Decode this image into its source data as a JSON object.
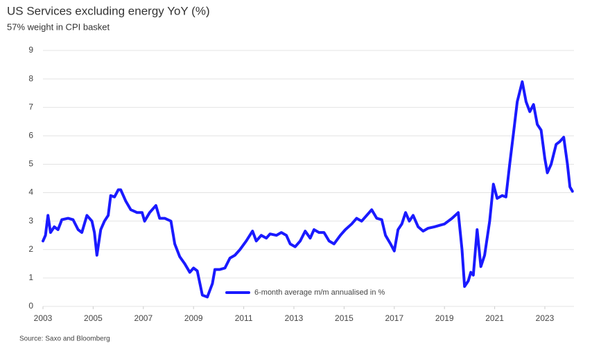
{
  "chart_data": {
    "type": "line",
    "title": "US Services excluding energy YoY (%)",
    "subtitle": "57% weight in CPI basket",
    "source": "Source: Saxo and Bloomberg",
    "legend": "lower center",
    "grid": true,
    "xlim": [
      2003,
      2024.16
    ],
    "xticks": [
      2003,
      2005,
      2007,
      2009,
      2011,
      2013,
      2015,
      2017,
      2019,
      2021,
      2023
    ],
    "ylim": [
      0,
      9
    ],
    "yticks": [
      0,
      1,
      2,
      3,
      4,
      5,
      6,
      7,
      8,
      9
    ],
    "x": [
      2003.0,
      2003.1,
      2003.2,
      2003.3,
      2003.45,
      2003.6,
      2003.75,
      2004.0,
      2004.2,
      2004.4,
      2004.55,
      2004.75,
      2004.95,
      2005.05,
      2005.15,
      2005.3,
      2005.45,
      2005.6,
      2005.7,
      2005.85,
      2006.0,
      2006.1,
      2006.3,
      2006.5,
      2006.75,
      2006.95,
      2007.05,
      2007.25,
      2007.5,
      2007.65,
      2007.85,
      2008.1,
      2008.25,
      2008.45,
      2008.65,
      2008.85,
      2009.0,
      2009.15,
      2009.35,
      2009.55,
      2009.75,
      2009.85,
      2010.05,
      2010.25,
      2010.45,
      2010.65,
      2010.85,
      2011.1,
      2011.35,
      2011.5,
      2011.7,
      2011.9,
      2012.05,
      2012.3,
      2012.5,
      2012.7,
      2012.85,
      2013.05,
      2013.25,
      2013.45,
      2013.65,
      2013.8,
      2014.0,
      2014.2,
      2014.4,
      2014.6,
      2014.85,
      2015.05,
      2015.3,
      2015.5,
      2015.7,
      2015.9,
      2016.1,
      2016.3,
      2016.5,
      2016.65,
      2016.85,
      2017.0,
      2017.15,
      2017.3,
      2017.45,
      2017.6,
      2017.75,
      2017.95,
      2018.15,
      2018.35,
      2018.6,
      2018.8,
      2019.0,
      2019.3,
      2019.55,
      2019.7,
      2019.8,
      2019.95,
      2020.05,
      2020.15,
      2020.3,
      2020.45,
      2020.6,
      2020.8,
      2020.95,
      2021.1,
      2021.3,
      2021.45,
      2021.6,
      2021.75,
      2021.9,
      2022.1,
      2022.25,
      2022.4,
      2022.55,
      2022.7,
      2022.85,
      2023.0,
      2023.1,
      2023.25,
      2023.45,
      2023.6,
      2023.75,
      2023.9,
      2024.0,
      2024.1
    ],
    "series": [
      {
        "name": "6-month average m/m annualised in %",
        "color": "#1a1aff",
        "values": [
          2.3,
          2.5,
          3.2,
          2.6,
          2.8,
          2.7,
          3.05,
          3.1,
          3.05,
          2.7,
          2.6,
          3.2,
          3.0,
          2.6,
          1.8,
          2.7,
          3.0,
          3.2,
          3.9,
          3.85,
          4.1,
          4.1,
          3.7,
          3.4,
          3.3,
          3.3,
          3.0,
          3.3,
          3.55,
          3.1,
          3.1,
          3.0,
          2.2,
          1.75,
          1.5,
          1.2,
          1.35,
          1.25,
          0.4,
          0.33,
          0.8,
          1.3,
          1.3,
          1.35,
          1.7,
          1.8,
          2.0,
          2.3,
          2.65,
          2.3,
          2.5,
          2.4,
          2.55,
          2.5,
          2.6,
          2.5,
          2.2,
          2.1,
          2.3,
          2.65,
          2.4,
          2.7,
          2.6,
          2.6,
          2.3,
          2.2,
          2.5,
          2.7,
          2.9,
          3.1,
          3.0,
          3.2,
          3.4,
          3.1,
          3.05,
          2.5,
          2.2,
          1.95,
          2.7,
          2.9,
          3.3,
          3.0,
          3.2,
          2.8,
          2.65,
          2.75,
          2.8,
          2.85,
          2.9,
          3.1,
          3.3,
          2.0,
          0.7,
          0.9,
          1.2,
          1.1,
          2.7,
          1.4,
          1.8,
          3.0,
          4.3,
          3.8,
          3.9,
          3.85,
          5.0,
          6.1,
          7.2,
          7.9,
          7.2,
          6.85,
          7.1,
          6.4,
          6.2,
          5.2,
          4.7,
          5.0,
          5.7,
          5.8,
          5.95,
          5.0,
          4.2,
          4.05
        ]
      }
    ]
  }
}
